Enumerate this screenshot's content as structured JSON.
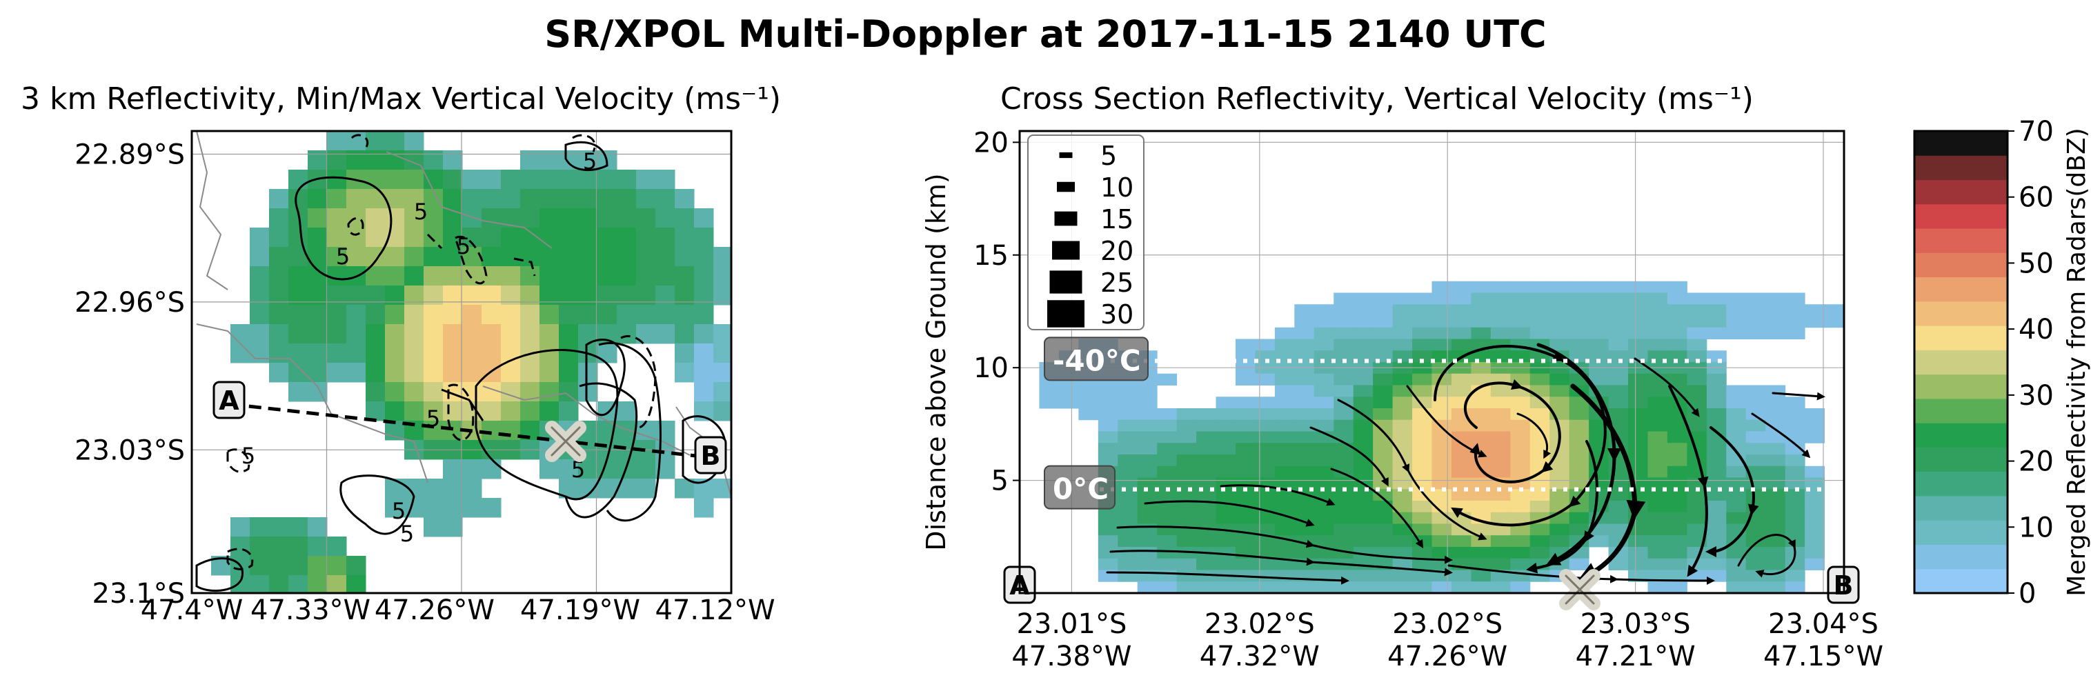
{
  "figure": {
    "suptitle": "SR/XPOL Multi-Doppler at 2017-11-15 2140 UTC"
  },
  "chart_data": [
    {
      "type": "heatmap",
      "panel": "left",
      "title": "3 km Reflectivity, Min/Max Vertical Velocity (ms⁻¹)",
      "x_ticks": [
        "47.4°W",
        "47.33°W",
        "47.26°W",
        "47.19°W",
        "47.12°W"
      ],
      "y_ticks": [
        "22.89°S",
        "22.96°S",
        "23.03°S",
        "23.1°S"
      ],
      "contour_labels": [
        "5",
        "5",
        "5",
        "5",
        "5",
        "5",
        "5",
        "5",
        "5"
      ],
      "cross_section_endpoints": [
        "A",
        "B"
      ],
      "grid": true
    },
    {
      "type": "heatmap",
      "panel": "right",
      "title": "Cross Section Reflectivity, Vertical Velocity (ms⁻¹)",
      "ylabel": "Distance above Ground (km)",
      "ylim": [
        0,
        20.5
      ],
      "y_ticks": [
        5,
        10,
        15,
        20
      ],
      "x_ticks": [
        {
          "lat": "23.01°S",
          "lon": "47.38°W"
        },
        {
          "lat": "23.02°S",
          "lon": "47.32°W"
        },
        {
          "lat": "23.02°S",
          "lon": "47.26°W"
        },
        {
          "lat": "23.03°S",
          "lon": "47.21°W"
        },
        {
          "lat": "23.04°S",
          "lon": "47.15°W"
        }
      ],
      "legend": {
        "placement": "top-left",
        "entries": [
          {
            "label": "5",
            "value": 5
          },
          {
            "label": "10",
            "value": 10
          },
          {
            "label": "15",
            "value": 15
          },
          {
            "label": "20",
            "value": 20
          },
          {
            "label": "25",
            "value": 25
          },
          {
            "label": "30",
            "value": 30
          }
        ]
      },
      "isotherms": [
        {
          "label": "-40°C",
          "height_km": 10.3
        },
        {
          "label": "0°C",
          "height_km": 4.6
        }
      ],
      "endpoints": [
        "A",
        "B"
      ],
      "grid": true
    },
    {
      "type": "colorbar",
      "label": "Merged Reflectivity from Radars(dBZ)",
      "range": [
        0,
        70
      ],
      "ticks": [
        0,
        10,
        20,
        30,
        40,
        50,
        60,
        70
      ],
      "colors": [
        "#93c9f7",
        "#82bfe4",
        "#6cbbc3",
        "#5db2ad",
        "#3fa77f",
        "#31a05e",
        "#23a04e",
        "#5aae56",
        "#9bbd66",
        "#cccf83",
        "#f7dc8a",
        "#f1bd7a",
        "#eba26e",
        "#e27e5e",
        "#dc6355",
        "#d14448",
        "#9e3338",
        "#6f2a2a",
        "#121212"
      ]
    }
  ]
}
